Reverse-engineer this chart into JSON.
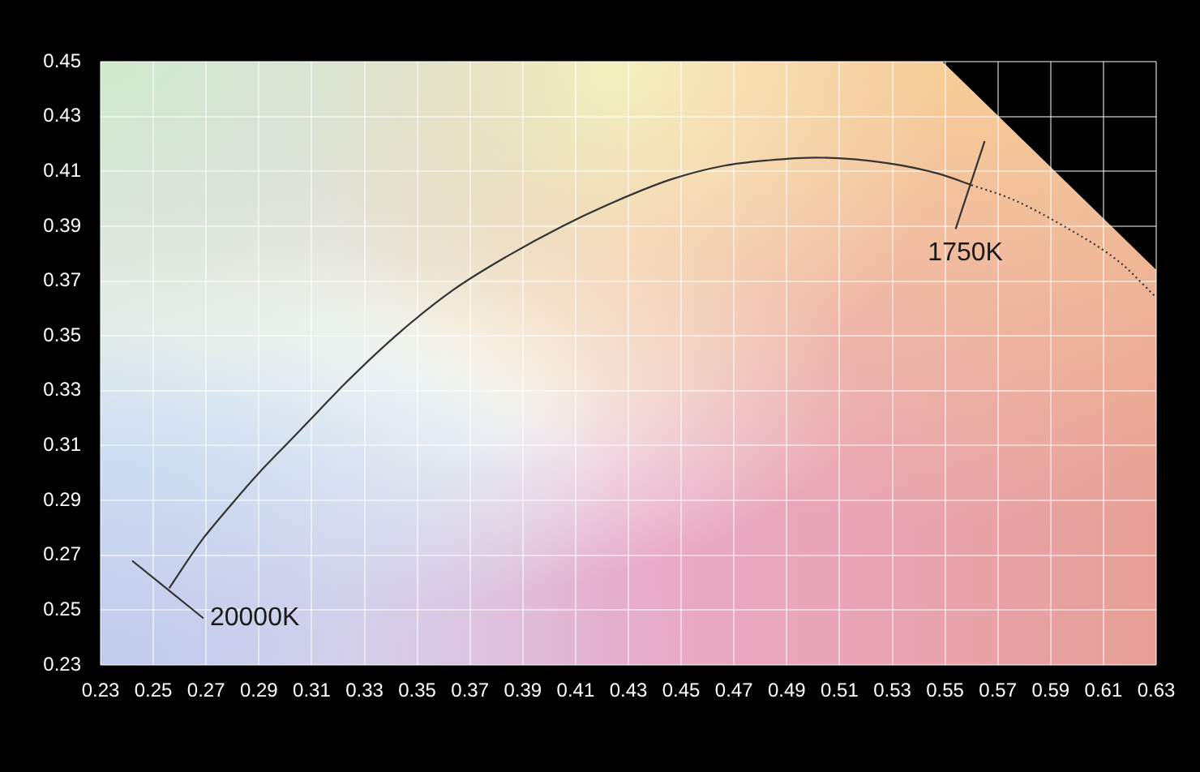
{
  "chart_data": {
    "type": "line",
    "xlim": [
      0.23,
      0.63
    ],
    "ylim": [
      0.23,
      0.45
    ],
    "xticks": [
      0.23,
      0.25,
      0.27,
      0.29,
      0.31,
      0.33,
      0.35,
      0.37,
      0.39,
      0.41,
      0.43,
      0.45,
      0.47,
      0.49,
      0.51,
      0.53,
      0.55,
      0.57,
      0.59,
      0.61,
      0.63
    ],
    "yticks": [
      0.23,
      0.25,
      0.27,
      0.29,
      0.31,
      0.33,
      0.35,
      0.37,
      0.39,
      0.41,
      0.43,
      0.45
    ],
    "grid": true,
    "marker": "none",
    "line_style": "solid",
    "series": [
      {
        "color": "#333333",
        "x": [
          0.256,
          0.268,
          0.28,
          0.29,
          0.302,
          0.313,
          0.323,
          0.343,
          0.364,
          0.384,
          0.405,
          0.425,
          0.446,
          0.466,
          0.483,
          0.501,
          0.528,
          0.548,
          0.56
        ],
        "values": [
          0.258,
          0.275,
          0.289,
          0.3,
          0.312,
          0.323,
          0.333,
          0.351,
          0.367,
          0.379,
          0.39,
          0.399,
          0.407,
          0.412,
          0.414,
          0.415,
          0.413,
          0.409,
          0.405
        ]
      },
      {
        "color": "#333333",
        "line_style": "dotted",
        "x": [
          0.56,
          0.575,
          0.595,
          0.616,
          0.63
        ],
        "values": [
          0.405,
          0.4,
          0.39,
          0.377,
          0.364
        ]
      },
      {
        "color": "#333333",
        "x": [
          0.242,
          0.269
        ],
        "values": [
          0.268,
          0.247
        ]
      },
      {
        "color": "#333333",
        "x": [
          0.565,
          0.554
        ],
        "values": [
          0.421,
          0.389
        ]
      }
    ],
    "annotations": [
      {
        "text": "20000K",
        "x": 0.269,
        "y": 0.247
      },
      {
        "text": "1750K",
        "x": 0.554,
        "y": 0.389
      }
    ]
  }
}
